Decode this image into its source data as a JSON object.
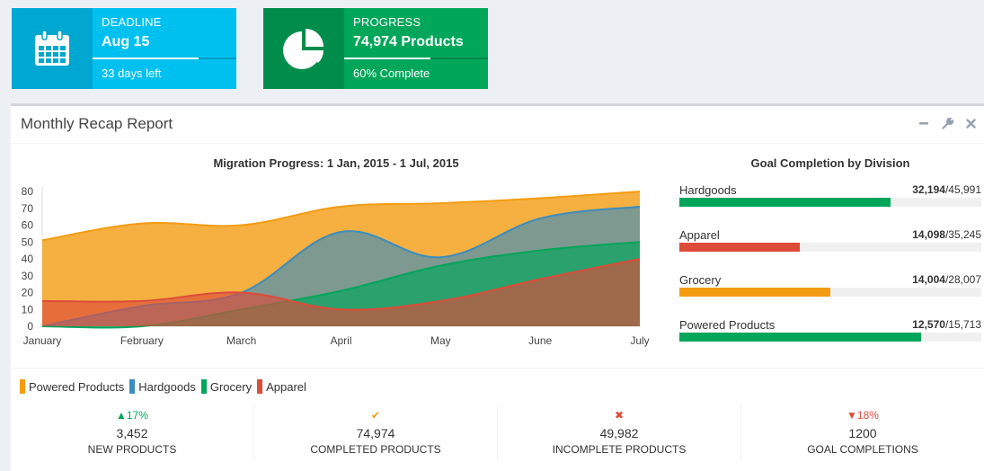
{
  "info_boxes": {
    "deadline": {
      "label": "DEADLINE",
      "value": "Aug 15",
      "progress": 0.74,
      "description": "33 days left",
      "icon": "calendar-icon"
    },
    "progress": {
      "label": "PROGRESS",
      "value": "74,974 Products",
      "progress": 0.6,
      "description": "60% Complete",
      "icon": "pie-chart-icon"
    }
  },
  "panel": {
    "title": "Monthly Recap Report",
    "tools": [
      "minus-icon",
      "wrench-icon",
      "close-icon"
    ]
  },
  "chart_title": "Migration Progress: 1 Jan, 2015 - 1 Jul, 2015",
  "chart_data": {
    "type": "area",
    "title": "Migration Progress: 1 Jan, 2015 - 1 Jul, 2015",
    "categories": [
      "January",
      "February",
      "March",
      "April",
      "May",
      "June",
      "July"
    ],
    "ylim": [
      0,
      80
    ],
    "yticks": [
      0,
      10,
      20,
      30,
      40,
      50,
      60,
      70,
      80
    ],
    "legend_position": "bottom-left",
    "series": [
      {
        "name": "Powered Products",
        "color": "#f39c12",
        "values": [
          51,
          61,
          60,
          71,
          73,
          76,
          80
        ]
      },
      {
        "name": "Hardgoods",
        "color": "#3c8dbc",
        "values": [
          0,
          12,
          20,
          56,
          41,
          64,
          71
        ]
      },
      {
        "name": "Grocery",
        "color": "#00a65a",
        "values": [
          0,
          0,
          10,
          21,
          36,
          45,
          50
        ]
      },
      {
        "name": "Apparel",
        "color": "#dd4b39",
        "values": [
          15,
          15,
          20,
          10,
          15,
          28,
          40
        ]
      }
    ]
  },
  "goals": {
    "title": "Goal Completion by Division",
    "items": [
      {
        "name": "Hardgoods",
        "done": "32,194",
        "total": "/45,991",
        "ratio": 0.7,
        "color": "#00a65a"
      },
      {
        "name": "Apparel",
        "done": "14,098",
        "total": "/35,245",
        "ratio": 0.4,
        "color": "#dd4b39"
      },
      {
        "name": "Grocery",
        "done": "14,004",
        "total": "/28,007",
        "ratio": 0.5,
        "color": "#f39c12"
      },
      {
        "name": "Powered Products",
        "done": "12,570",
        "total": "/15,713",
        "ratio": 0.8,
        "color": "#00a65a"
      }
    ]
  },
  "legend": [
    {
      "name": "Powered Products",
      "color": "#f39c12"
    },
    {
      "name": "Hardgoods",
      "color": "#3c8dbc"
    },
    {
      "name": "Grocery",
      "color": "#00a65a"
    },
    {
      "name": "Apparel",
      "color": "#dd4b39"
    }
  ],
  "stats": [
    {
      "indicator": "▲",
      "pct": "17%",
      "value": "3,452",
      "label": "NEW PRODUCTS",
      "kind": "up"
    },
    {
      "indicator": "✔",
      "pct": "",
      "value": "74,974",
      "label": "COMPLETED PRODUCTS",
      "kind": "ok"
    },
    {
      "indicator": "✖",
      "pct": "",
      "value": "49,982",
      "label": "INCOMPLETE PRODUCTS",
      "kind": "bad"
    },
    {
      "indicator": "▼",
      "pct": "18%",
      "value": "1200",
      "label": "GOAL COMPLETIONS",
      "kind": "down"
    }
  ]
}
